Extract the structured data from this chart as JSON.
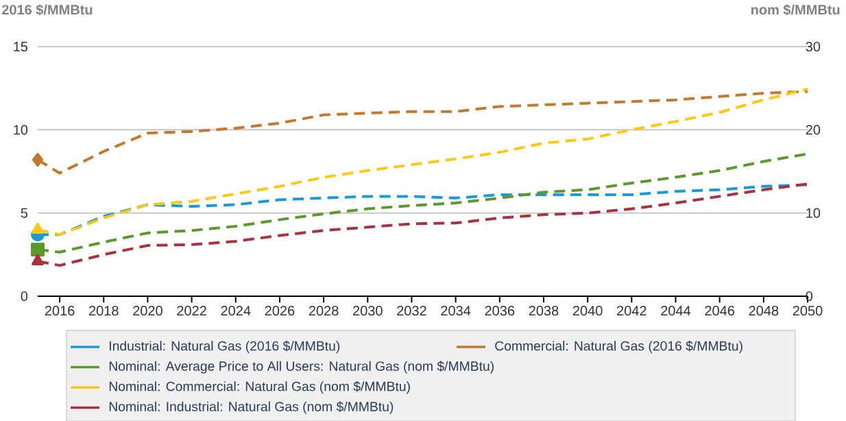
{
  "chart_data": {
    "type": "line",
    "ylabel": "2016 $/MMBtu",
    "y2label": "nom $/MMBtu",
    "x": [
      2015,
      2016,
      2018,
      2020,
      2022,
      2024,
      2026,
      2028,
      2030,
      2032,
      2034,
      2036,
      2038,
      2040,
      2042,
      2044,
      2046,
      2048,
      2050
    ],
    "xlim": [
      2015,
      2050
    ],
    "xticks": [
      2016,
      2018,
      2020,
      2022,
      2024,
      2026,
      2028,
      2030,
      2032,
      2034,
      2036,
      2038,
      2040,
      2042,
      2044,
      2046,
      2048,
      2050
    ],
    "ylim": [
      0,
      15
    ],
    "yticks": [
      0,
      5,
      10,
      15
    ],
    "y2lim": [
      0,
      30
    ],
    "y2ticks": [
      0,
      10,
      20,
      30
    ],
    "grid": "y",
    "legend": "bottom",
    "line_style": "dashed",
    "series": [
      {
        "name": "Industrial: Natural Gas (2016 $/MMBtu)",
        "color": "#1a9ad8",
        "values": [
          3.7,
          3.7,
          4.8,
          5.5,
          5.4,
          5.5,
          5.8,
          5.9,
          6.0,
          6.0,
          5.9,
          6.1,
          6.1,
          6.1,
          6.1,
          6.3,
          6.4,
          6.6,
          6.7
        ]
      },
      {
        "name": "Commercial: Natural Gas (2016 $/MMBtu)",
        "color": "#c47a2c",
        "values": [
          8.2,
          7.4,
          8.7,
          9.8,
          9.9,
          10.1,
          10.4,
          10.9,
          11.0,
          11.1,
          11.1,
          11.4,
          11.5,
          11.6,
          11.7,
          11.8,
          12.0,
          12.2,
          12.3
        ]
      },
      {
        "name": "Nominal: Average Price to All Users: Natural Gas (nom $/MMBtu)",
        "color": "#5a9a2c",
        "axis": "y2",
        "values": [
          5.6,
          5.3,
          6.5,
          7.6,
          7.9,
          8.4,
          9.2,
          9.9,
          10.5,
          10.9,
          11.2,
          11.8,
          12.5,
          12.8,
          13.6,
          14.3,
          15.1,
          16.2,
          17.1
        ]
      },
      {
        "name": "Nominal: Commercial: Natural Gas (nom $/MMBtu)",
        "color": "#ffc913",
        "axis": "y2",
        "values": [
          8.0,
          7.4,
          9.4,
          11.0,
          11.4,
          12.3,
          13.2,
          14.3,
          15.1,
          15.8,
          16.5,
          17.3,
          18.4,
          18.9,
          20.0,
          21.0,
          22.1,
          23.6,
          24.9
        ]
      },
      {
        "name": "Nominal: Industrial: Natural Gas (nom $/MMBtu)",
        "color": "#a8323e",
        "axis": "y2",
        "values": [
          4.2,
          3.7,
          5.0,
          6.1,
          6.2,
          6.6,
          7.3,
          7.9,
          8.3,
          8.7,
          8.8,
          9.4,
          9.8,
          10.0,
          10.5,
          11.2,
          12.0,
          12.8,
          13.5
        ]
      },
      {
        "type": "scatter",
        "color": "#1a9ad8",
        "marker": "circle",
        "values": [
          3.7,
          null,
          null,
          null,
          null,
          null,
          null,
          null,
          null,
          null,
          null,
          null,
          null,
          null,
          null,
          null,
          null,
          null,
          null
        ]
      },
      {
        "type": "scatter",
        "color": "#c47a2c",
        "marker": "diamond",
        "values": [
          8.2,
          null,
          null,
          null,
          null,
          null,
          null,
          null,
          null,
          null,
          null,
          null,
          null,
          null,
          null,
          null,
          null,
          null,
          null
        ]
      },
      {
        "type": "scatter",
        "color": "#5a9a2c",
        "marker": "square",
        "axis": "y2",
        "values": [
          5.6,
          null,
          null,
          null,
          null,
          null,
          null,
          null,
          null,
          null,
          null,
          null,
          null,
          null,
          null,
          null,
          null,
          null,
          null
        ]
      },
      {
        "type": "scatter",
        "color": "#ffc913",
        "marker": "triangle",
        "axis": "y2",
        "values": [
          8.0,
          null,
          null,
          null,
          null,
          null,
          null,
          null,
          null,
          null,
          null,
          null,
          null,
          null,
          null,
          null,
          null,
          null,
          null
        ]
      },
      {
        "type": "scatter",
        "color": "#a8323e",
        "marker": "triangle",
        "axis": "y2",
        "values": [
          4.2,
          null,
          null,
          null,
          null,
          null,
          null,
          null,
          null,
          null,
          null,
          null,
          null,
          null,
          null,
          null,
          null,
          null,
          null
        ]
      }
    ]
  }
}
